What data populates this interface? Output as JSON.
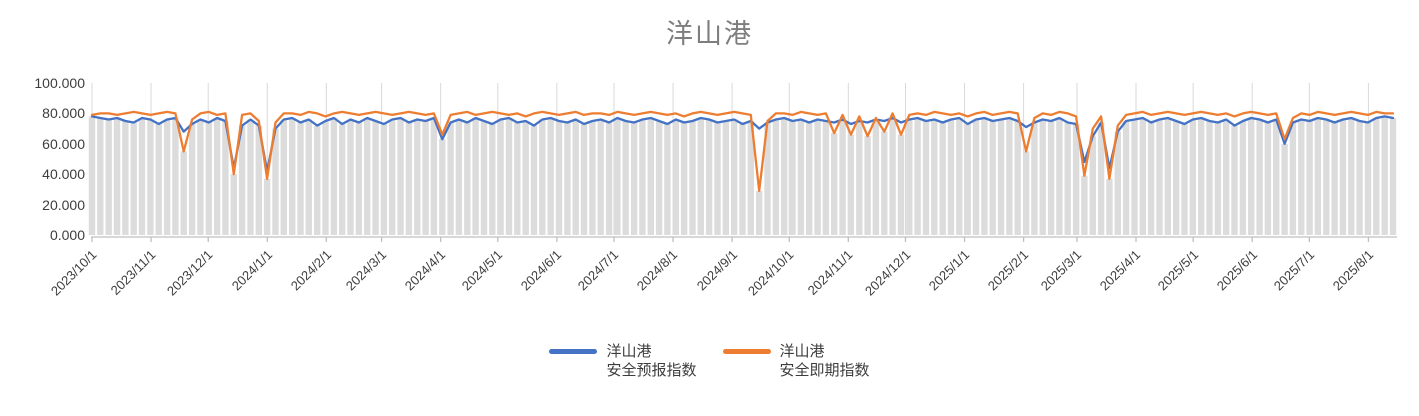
{
  "title": "洋山港",
  "legend": {
    "items": [
      {
        "line1": "洋山港",
        "line2": "安全预报指数",
        "color": "#4472C4"
      },
      {
        "line1": "洋山港",
        "line2": "安全即期指数",
        "color": "#ED7D31"
      }
    ]
  },
  "chart_data": {
    "type": "line",
    "title": "洋山港",
    "y_axis": {
      "min": 0,
      "max": 100,
      "tick_step": 20,
      "tick_labels": [
        "100.000",
        "80.000",
        "60.000",
        "40.000",
        "20.000",
        "0.000"
      ]
    },
    "x_tick_labels": [
      "2023/10/1",
      "2023/11/1",
      "2023/12/1",
      "2024/1/1",
      "2024/2/1",
      "2024/3/1",
      "2024/4/1",
      "2024/5/1",
      "2024/6/1",
      "2024/7/1",
      "2024/8/1",
      "2024/9/1",
      "2024/10/1",
      "2024/11/1",
      "2024/12/1",
      "2025/1/1",
      "2025/2/1",
      "2025/3/1",
      "2025/4/1",
      "2025/5/1",
      "2025/6/1",
      "2025/7/1",
      "2025/8/1"
    ],
    "x_range_days": 685,
    "sampling_note": "values estimated from pixels, approx. one point every 4-5 days",
    "grid": "vertical-monthly",
    "legend_position": "bottom",
    "gridline_color": "#d9d9d9",
    "axis_color": "#bfbfbf",
    "drop_bar_color": "#dcdcdc",
    "series": [
      {
        "name": "洋山港 安全预报指数",
        "color": "#4472C4",
        "values": [
          78,
          77,
          76,
          77,
          75,
          74,
          77,
          76,
          73,
          76,
          77,
          68,
          73,
          76,
          74,
          77,
          75,
          44,
          72,
          76,
          72,
          42,
          70,
          76,
          77,
          74,
          76,
          72,
          75,
          77,
          73,
          76,
          74,
          77,
          75,
          73,
          76,
          77,
          74,
          76,
          75,
          77,
          63,
          74,
          76,
          74,
          77,
          75,
          73,
          76,
          77,
          74,
          75,
          72,
          76,
          77,
          75,
          74,
          76,
          73,
          75,
          76,
          74,
          77,
          75,
          74,
          76,
          77,
          75,
          73,
          76,
          74,
          75,
          77,
          76,
          74,
          75,
          76,
          73,
          75,
          70,
          74,
          76,
          77,
          75,
          76,
          74,
          76,
          75,
          74,
          76,
          73,
          75,
          74,
          76,
          75,
          77,
          74,
          76,
          77,
          75,
          76,
          74,
          76,
          77,
          73,
          76,
          77,
          75,
          76,
          77,
          75,
          71,
          74,
          76,
          75,
          77,
          74,
          73,
          48,
          65,
          74,
          44,
          68,
          75,
          76,
          77,
          74,
          76,
          77,
          75,
          73,
          76,
          77,
          75,
          74,
          76,
          72,
          75,
          77,
          76,
          74,
          76,
          60,
          74,
          76,
          75,
          77,
          76,
          74,
          76,
          77,
          75,
          74,
          77,
          78,
          77
        ]
      },
      {
        "name": "洋山港 安全即期指数",
        "color": "#ED7D31",
        "values": [
          79,
          80,
          80,
          79,
          80,
          81,
          80,
          79,
          80,
          81,
          80,
          55,
          76,
          80,
          81,
          79,
          80,
          40,
          79,
          80,
          75,
          37,
          74,
          80,
          80,
          79,
          81,
          80,
          78,
          80,
          81,
          80,
          79,
          80,
          81,
          80,
          79,
          80,
          81,
          80,
          79,
          80,
          66,
          79,
          80,
          81,
          79,
          80,
          81,
          80,
          79,
          80,
          78,
          80,
          81,
          80,
          79,
          80,
          81,
          79,
          80,
          80,
          79,
          81,
          80,
          79,
          80,
          81,
          80,
          79,
          80,
          78,
          80,
          81,
          80,
          79,
          80,
          81,
          80,
          79,
          29,
          75,
          80,
          80,
          79,
          81,
          80,
          79,
          80,
          67,
          79,
          66,
          78,
          65,
          77,
          68,
          80,
          66,
          79,
          80,
          79,
          81,
          80,
          79,
          80,
          78,
          80,
          81,
          79,
          80,
          81,
          80,
          55,
          77,
          80,
          79,
          81,
          80,
          78,
          39,
          70,
          78,
          37,
          72,
          79,
          80,
          81,
          79,
          80,
          81,
          80,
          79,
          80,
          81,
          80,
          79,
          80,
          78,
          80,
          81,
          80,
          79,
          80,
          63,
          77,
          80,
          79,
          81,
          80,
          79,
          80,
          81,
          80,
          79,
          81,
          80,
          80
        ]
      }
    ]
  }
}
